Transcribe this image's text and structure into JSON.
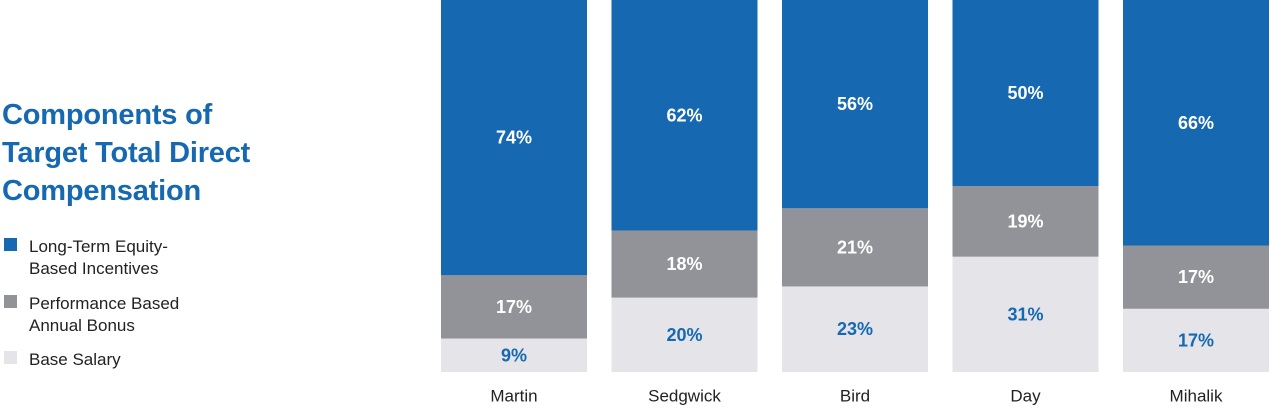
{
  "title": {
    "lines": [
      "Components of",
      "Target Total Direct",
      "Compensation"
    ]
  },
  "legend": [
    {
      "lines": [
        "Long-Term Equity-",
        "Based Incentives"
      ],
      "color": "#1669b1"
    },
    {
      "lines": [
        "Performance Based",
        "Annual Bonus"
      ],
      "color": "#929399"
    },
    {
      "lines": [
        "Base Salary"
      ],
      "color": "#e4e4e9"
    }
  ],
  "colors": {
    "equity": "#1669b1",
    "bonus": "#929399",
    "salary": "#e4e4e9",
    "label_on_dark": "#ffffff",
    "label_on_light": "#1669b1",
    "category_text": "#222222"
  },
  "chart_data": {
    "type": "bar",
    "stacked": true,
    "orientation": "vertical",
    "normalized_percent": true,
    "categories": [
      "Martin",
      "Sedgwick",
      "Bird",
      "Day",
      "Mihalik"
    ],
    "series": [
      {
        "name": "Base Salary",
        "values": [
          9,
          20,
          23,
          31,
          17
        ],
        "labels": [
          "9%",
          "20%",
          "23%",
          "31%",
          "17%"
        ]
      },
      {
        "name": "Performance Based Annual Bonus",
        "values": [
          17,
          18,
          21,
          19,
          17
        ],
        "labels": [
          "17%",
          "18%",
          "21%",
          "19%",
          "17%"
        ]
      },
      {
        "name": "Long-Term Equity-Based Incentives",
        "values": [
          74,
          62,
          56,
          50,
          66
        ],
        "labels": [
          "74%",
          "62%",
          "56%",
          "50%",
          "66%"
        ]
      }
    ],
    "ylim": [
      0,
      100
    ],
    "grid": false,
    "legend_position": "left",
    "xlabel": "",
    "ylabel": ""
  }
}
